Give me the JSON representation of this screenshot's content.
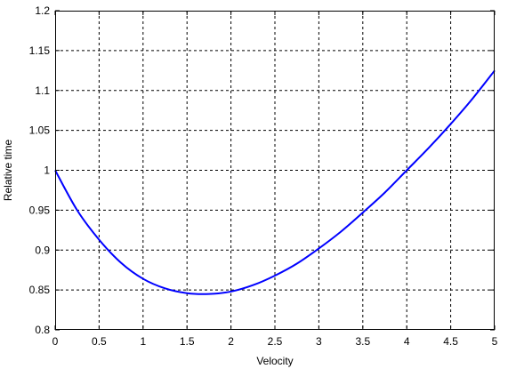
{
  "chart_data": {
    "type": "line",
    "title": "",
    "xlabel": "Velocity",
    "ylabel": "Relative time",
    "xlim": [
      0,
      5
    ],
    "ylim": [
      0.8,
      1.2
    ],
    "x_ticks": [
      0,
      0.5,
      1,
      1.5,
      2,
      2.5,
      3,
      3.5,
      4,
      4.5,
      5
    ],
    "y_ticks": [
      0.8,
      0.85,
      0.9,
      0.95,
      1,
      1.05,
      1.1,
      1.15,
      1.2
    ],
    "x_tick_labels": [
      "0",
      "0.5",
      "1",
      "1.5",
      "2",
      "2.5",
      "3",
      "3.5",
      "4",
      "4.5",
      "5"
    ],
    "y_tick_labels": [
      "0.8",
      "0.85",
      "0.9",
      "0.95",
      "1",
      "1.05",
      "1.1",
      "1.15",
      "1.2"
    ],
    "grid": true,
    "grid_style": "dashed",
    "series": [
      {
        "color": "#0000ff",
        "x": [
          0,
          0.25,
          0.5,
          0.75,
          1.0,
          1.25,
          1.5,
          1.75,
          2.0,
          2.25,
          2.5,
          2.75,
          3.0,
          3.25,
          3.5,
          3.75,
          4.0,
          4.25,
          4.5,
          4.75,
          5.0
        ],
        "y": [
          1.0,
          0.95,
          0.913,
          0.884,
          0.864,
          0.852,
          0.846,
          0.845,
          0.848,
          0.856,
          0.868,
          0.883,
          0.902,
          0.923,
          0.947,
          0.972,
          1.0,
          1.028,
          1.058,
          1.09,
          1.125
        ]
      }
    ]
  }
}
